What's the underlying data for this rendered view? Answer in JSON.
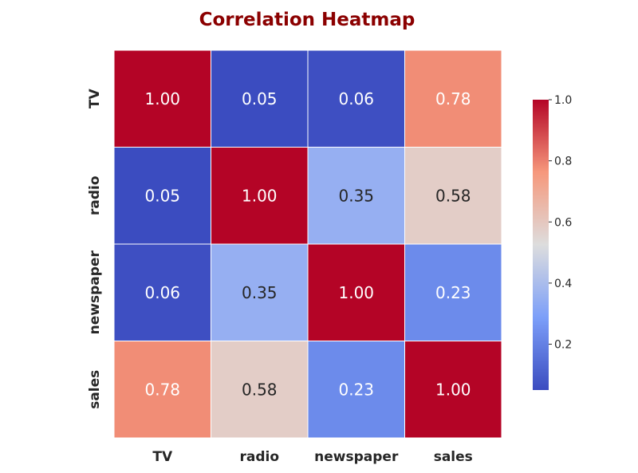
{
  "title": "Correlation Heatmap",
  "chart_data": {
    "type": "heatmap",
    "title": "Correlation Heatmap",
    "x_labels": [
      "TV",
      "radio",
      "newspaper",
      "sales"
    ],
    "y_labels": [
      "TV",
      "radio",
      "newspaper",
      "sales"
    ],
    "values": [
      [
        1.0,
        0.05,
        0.06,
        0.78
      ],
      [
        0.05,
        1.0,
        0.35,
        0.58
      ],
      [
        0.06,
        0.35,
        1.0,
        0.23
      ],
      [
        0.78,
        0.58,
        0.23,
        1.0
      ]
    ],
    "value_labels": [
      [
        "1.00",
        "0.05",
        "0.06",
        "0.78"
      ],
      [
        "0.05",
        "1.00",
        "0.35",
        "0.58"
      ],
      [
        "0.06",
        "0.35",
        "1.00",
        "0.23"
      ],
      [
        "0.78",
        "0.58",
        "0.23",
        "1.00"
      ]
    ],
    "colormap": "coolwarm",
    "vmin": 0.05,
    "vmax": 1.0,
    "colorbar": {
      "ticks": [
        0.2,
        0.4,
        0.6,
        0.8,
        1.0
      ],
      "tick_labels": [
        "0.2",
        "0.4",
        "0.6",
        "0.8",
        "1.0"
      ],
      "placement": "right"
    },
    "gridlines": "white",
    "xlabel": "",
    "ylabel": ""
  },
  "colors": {
    "title": "#8b0000",
    "cell_border": "#ffffff"
  }
}
